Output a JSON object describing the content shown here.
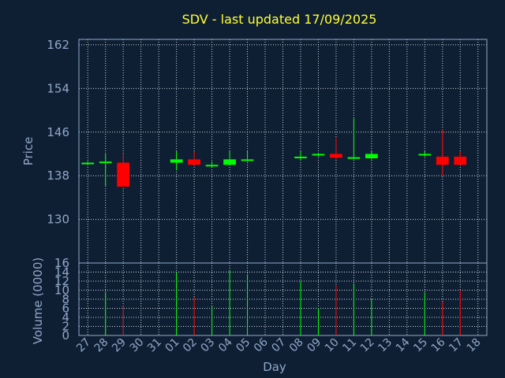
{
  "chart_data": {
    "type": "candlestick",
    "title": "SDV - last updated 17/09/2025",
    "price_axis": {
      "label": "Price",
      "ticks": [
        130,
        138,
        146,
        154,
        162
      ],
      "range": [
        122,
        163
      ]
    },
    "volume_axis": {
      "label": "Volume (0000)",
      "ticks": [
        0,
        2,
        4,
        6,
        8,
        10,
        12,
        14,
        16
      ],
      "range": [
        0,
        16
      ]
    },
    "x_axis": {
      "label": "Day",
      "ticks": [
        "27",
        "28",
        "29",
        "30",
        "31",
        "01",
        "02",
        "03",
        "04",
        "05",
        "06",
        "07",
        "08",
        "09",
        "10",
        "11",
        "12",
        "13",
        "14",
        "15",
        "16",
        "17",
        "18"
      ]
    },
    "grid": true,
    "colors": {
      "up": "#00ff00",
      "down": "#ff0000",
      "grid": "#c8d2dc",
      "frame": "#8fa8c8",
      "text": "#8fa8c8",
      "title": "#ffff33",
      "background": "#0f1f33"
    },
    "candles": [
      {
        "day": "27",
        "open": 140.4,
        "high": 140.6,
        "low": 140.2,
        "close": 140.4,
        "volume": 0
      },
      {
        "day": "28",
        "open": 140.4,
        "high": 142.0,
        "low": 136.0,
        "close": 140.6,
        "volume": 9.5
      },
      {
        "day": "29",
        "open": 140.4,
        "high": 142.0,
        "low": 136.0,
        "close": 136.0,
        "volume": 6.5
      },
      {
        "day": "01",
        "open": 140.4,
        "high": 142.5,
        "low": 139.0,
        "close": 141.0,
        "volume": 14.0
      },
      {
        "day": "02",
        "open": 141.0,
        "high": 142.5,
        "low": 140.0,
        "close": 140.0,
        "volume": 8.5
      },
      {
        "day": "03",
        "open": 139.8,
        "high": 140.6,
        "low": 139.6,
        "close": 140.0,
        "volume": 6.5
      },
      {
        "day": "04",
        "open": 140.0,
        "high": 142.5,
        "low": 140.0,
        "close": 141.0,
        "volume": 14.5
      },
      {
        "day": "05",
        "open": 140.8,
        "high": 142.5,
        "low": 140.6,
        "close": 141.0,
        "volume": 13.5
      },
      {
        "day": "08",
        "open": 141.3,
        "high": 142.5,
        "low": 140.8,
        "close": 141.5,
        "volume": 12.0
      },
      {
        "day": "09",
        "open": 141.8,
        "high": 142.2,
        "low": 141.5,
        "close": 142.0,
        "volume": 6.0
      },
      {
        "day": "10",
        "open": 142.0,
        "high": 145.0,
        "low": 141.0,
        "close": 141.3,
        "volume": 11.0
      },
      {
        "day": "11",
        "open": 141.3,
        "high": 148.5,
        "low": 141.0,
        "close": 141.4,
        "volume": 11.5
      },
      {
        "day": "12",
        "open": 141.2,
        "high": 142.5,
        "low": 141.0,
        "close": 142.0,
        "volume": 8.0
      },
      {
        "day": "15",
        "open": 141.8,
        "high": 142.5,
        "low": 141.5,
        "close": 142.0,
        "volume": 9.5
      },
      {
        "day": "16",
        "open": 141.5,
        "high": 146.5,
        "low": 138.0,
        "close": 140.0,
        "volume": 7.5
      },
      {
        "day": "17",
        "open": 141.5,
        "high": 142.5,
        "low": 140.0,
        "close": 140.0,
        "volume": 10.0
      }
    ]
  }
}
